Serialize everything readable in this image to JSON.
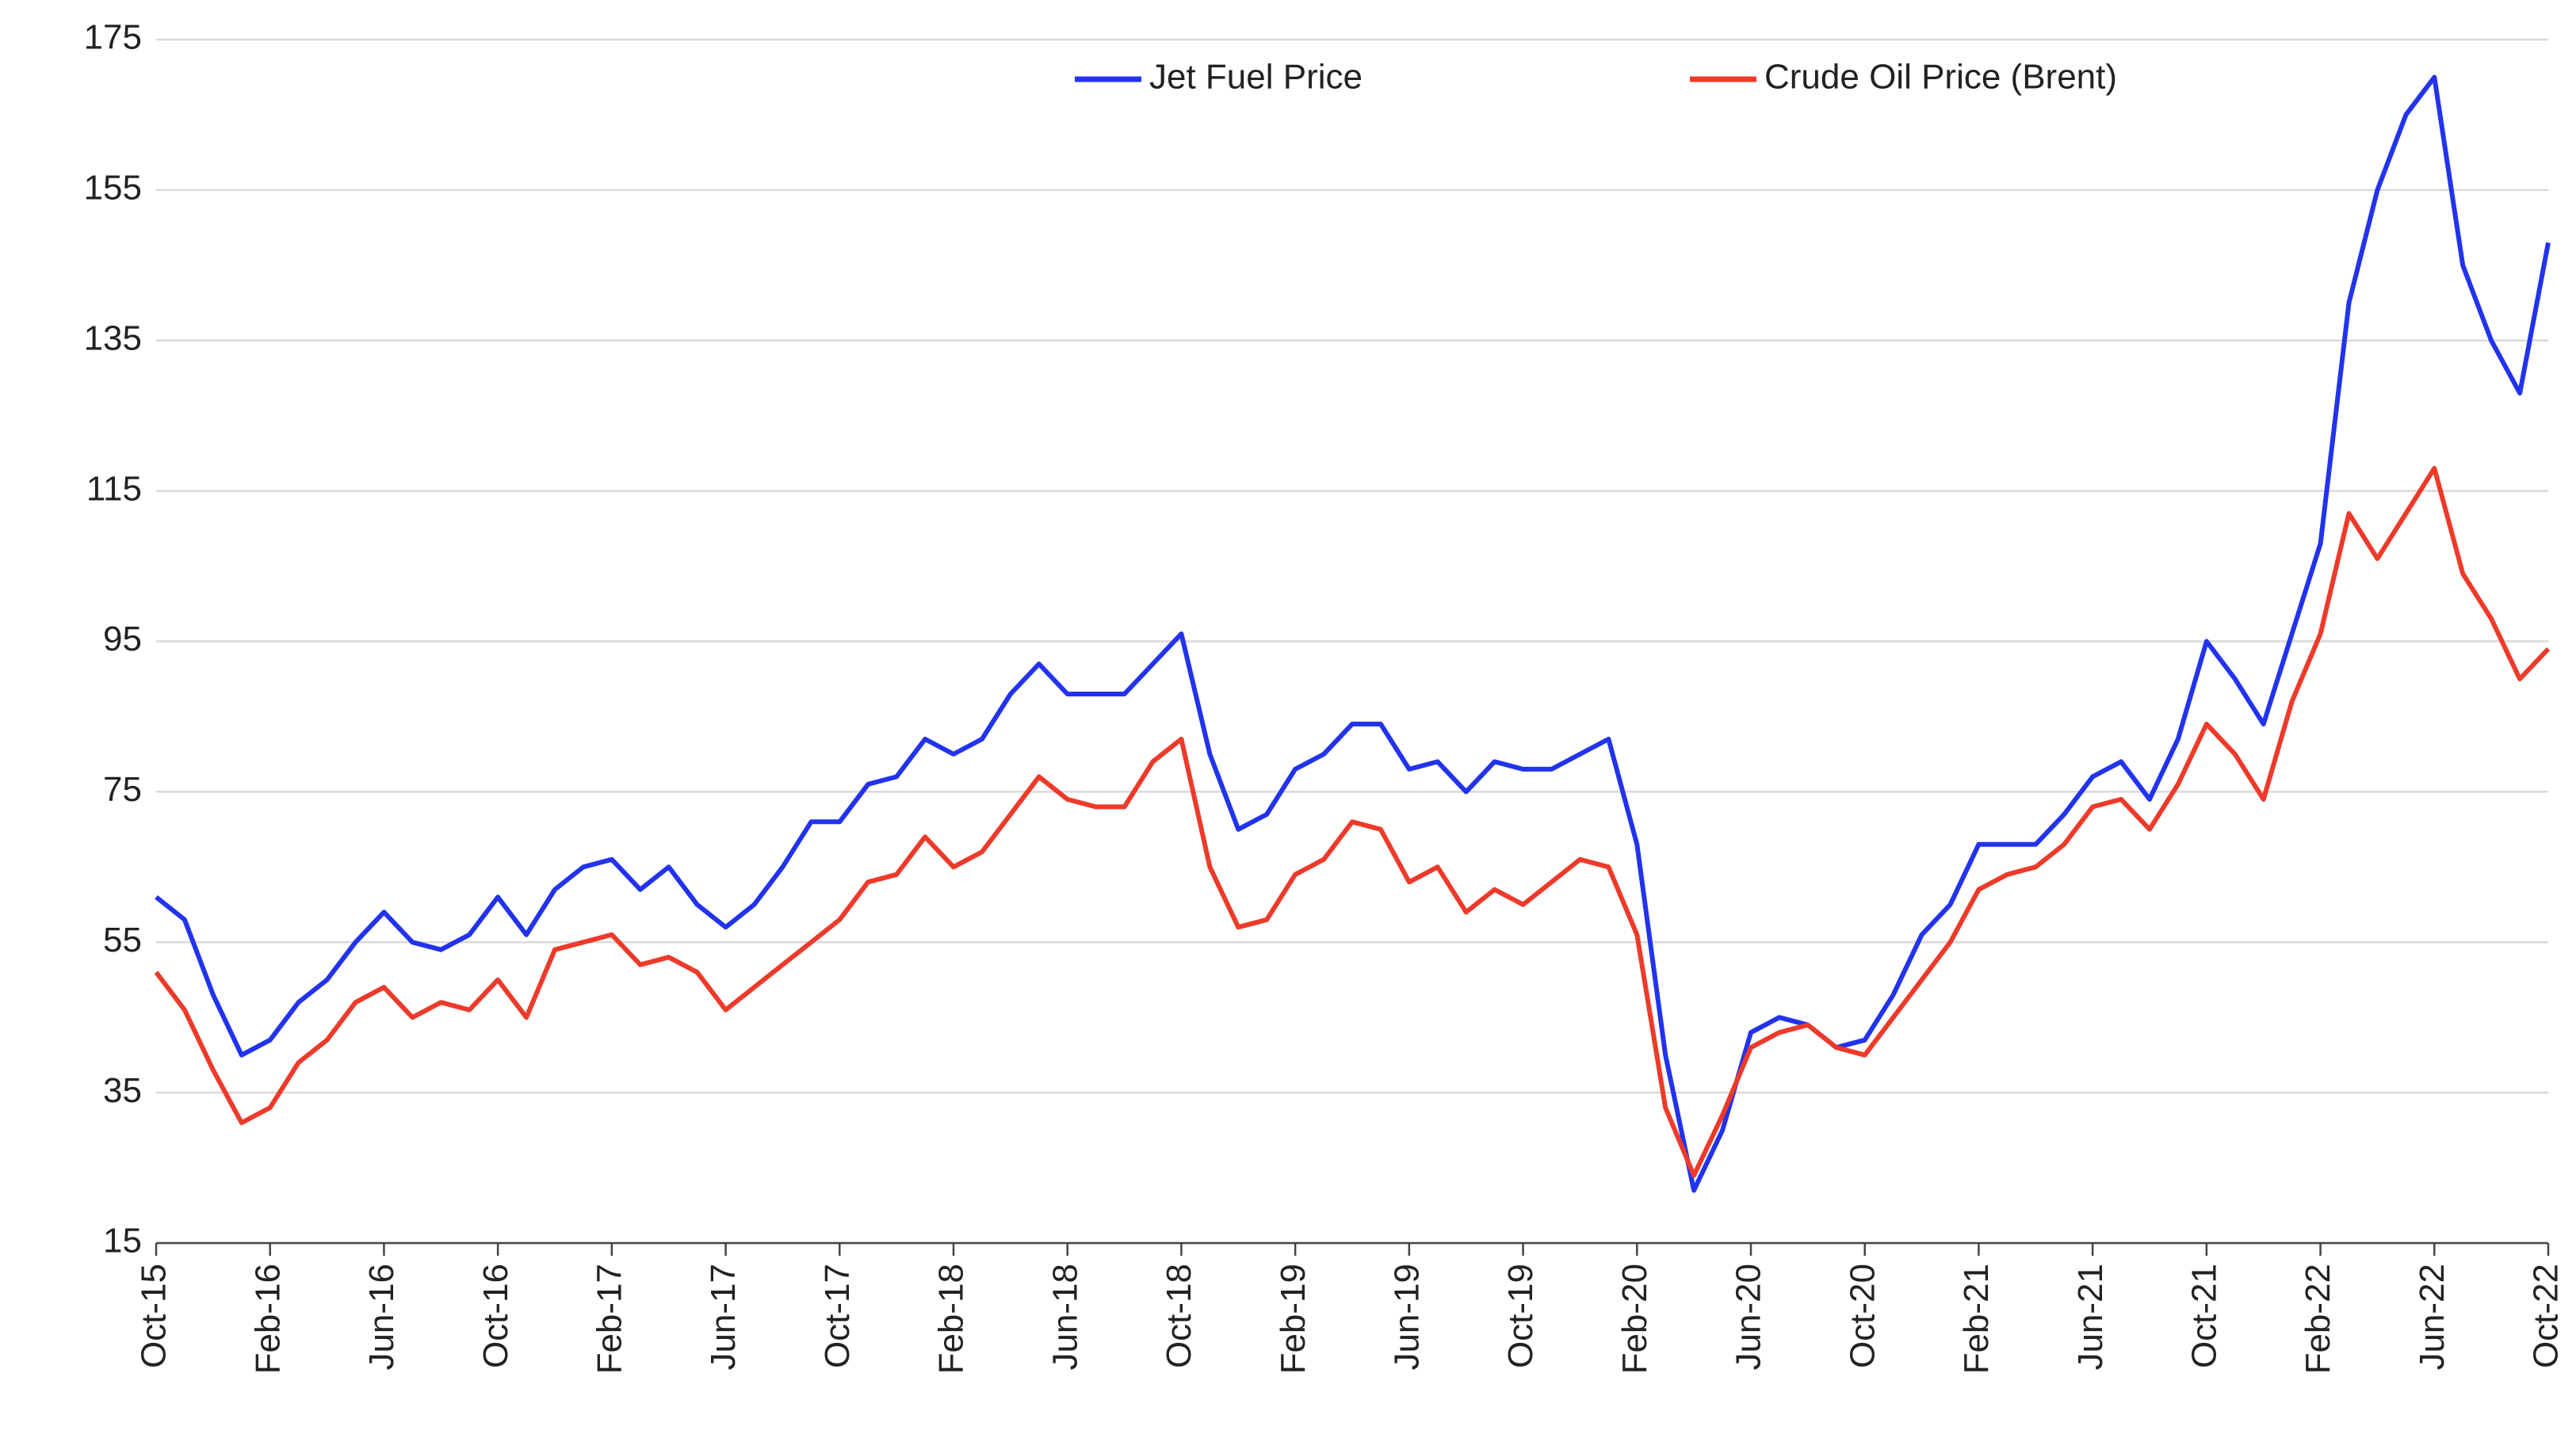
{
  "chart_data": {
    "type": "line",
    "categories": [
      "Oct-15",
      null,
      null,
      null,
      "Feb-16",
      null,
      null,
      null,
      "Jun-16",
      null,
      null,
      null,
      "Oct-16",
      null,
      null,
      null,
      "Feb-17",
      null,
      null,
      null,
      "Jun-17",
      null,
      null,
      null,
      "Oct-17",
      null,
      null,
      null,
      "Feb-18",
      null,
      null,
      null,
      "Jun-18",
      null,
      null,
      null,
      "Oct-18",
      null,
      null,
      null,
      "Feb-19",
      null,
      null,
      null,
      "Jun-19",
      null,
      null,
      null,
      "Oct-19",
      null,
      null,
      null,
      "Feb-20",
      null,
      null,
      null,
      "Jun-20",
      null,
      null,
      null,
      "Oct-20",
      null,
      null,
      null,
      "Feb-21",
      null,
      null,
      null,
      "Jun-21",
      null,
      null,
      null,
      "Oct-21",
      null,
      null,
      null,
      "Feb-22",
      null,
      null,
      null,
      "Jun-22",
      null,
      null,
      null,
      "Oct-22"
    ],
    "series": [
      {
        "name": "Jet Fuel Price",
        "color": "#2233ee",
        "values": [
          61,
          58,
          48,
          40,
          42,
          47,
          50,
          55,
          59,
          55,
          54,
          56,
          61,
          56,
          62,
          65,
          66,
          62,
          65,
          60,
          57,
          60,
          65,
          71,
          71,
          76,
          77,
          82,
          80,
          82,
          88,
          92,
          88,
          88,
          88,
          92,
          96,
          80,
          70,
          72,
          78,
          80,
          84,
          84,
          78,
          79,
          75,
          79,
          78,
          78,
          80,
          82,
          68,
          40,
          22,
          30,
          43,
          45,
          44,
          41,
          42,
          48,
          56,
          60,
          68,
          68,
          68,
          72,
          77,
          79,
          74,
          82,
          95,
          90,
          84,
          96,
          108,
          140,
          155,
          165,
          170,
          145,
          135,
          128,
          148
        ]
      },
      {
        "name": "Crude Oil Price (Brent)",
        "color": "#ee3a2a",
        "values": [
          51,
          46,
          38,
          31,
          33,
          39,
          42,
          47,
          49,
          45,
          47,
          46,
          50,
          45,
          54,
          55,
          56,
          52,
          53,
          51,
          46,
          49,
          52,
          55,
          58,
          63,
          64,
          69,
          65,
          67,
          72,
          77,
          74,
          73,
          73,
          79,
          82,
          65,
          57,
          58,
          64,
          66,
          71,
          70,
          63,
          65,
          59,
          62,
          60,
          63,
          66,
          65,
          56,
          33,
          24,
          32,
          41,
          43,
          44,
          41,
          40,
          45,
          50,
          55,
          62,
          64,
          65,
          68,
          73,
          74,
          70,
          76,
          84,
          80,
          74,
          87,
          96,
          112,
          106,
          112,
          118,
          104,
          98,
          90,
          94
        ]
      }
    ],
    "ylim": [
      15,
      175
    ],
    "yticks": [
      15,
      35,
      55,
      75,
      95,
      115,
      135,
      155,
      175
    ],
    "grid": true,
    "legend": "top"
  }
}
